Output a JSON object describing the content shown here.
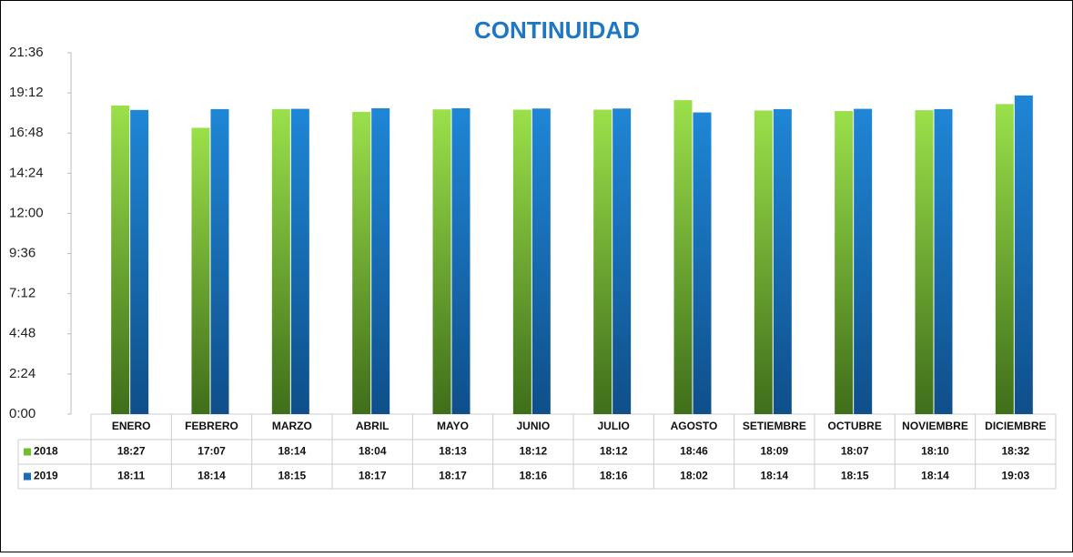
{
  "chart_data": {
    "type": "bar",
    "title": "CONTINUIDAD",
    "categories": [
      "ENERO",
      "FEBRERO",
      "MARZO",
      "ABRIL",
      "MAYO",
      "JUNIO",
      "JULIO",
      "AGOSTO",
      "SETIEMBRE",
      "OCTUBRE",
      "NOVIEMBRE",
      "DICIEMBRE"
    ],
    "series": [
      {
        "name": "2018",
        "color": "#6fbf2a",
        "values": [
          18.45,
          17.1167,
          18.2333,
          18.0667,
          18.2167,
          18.2,
          18.2,
          18.7667,
          18.15,
          18.1167,
          18.1667,
          18.5333
        ],
        "value_labels": [
          "18:27",
          "17:07",
          "18:14",
          "18:04",
          "18:13",
          "18:12",
          "18:12",
          "18:46",
          "18:09",
          "18:07",
          "18:10",
          "18:32"
        ]
      },
      {
        "name": "2019",
        "color": "#1a6db5",
        "values": [
          18.1833,
          18.2333,
          18.25,
          18.2833,
          18.2833,
          18.2667,
          18.2667,
          18.0333,
          18.2333,
          18.25,
          18.2333,
          19.05
        ],
        "value_labels": [
          "18:11",
          "18:14",
          "18:15",
          "18:17",
          "18:17",
          "18:16",
          "18:16",
          "18:02",
          "18:14",
          "18:15",
          "18:14",
          "19:03"
        ]
      }
    ],
    "ylim": [
      0,
      21.6
    ],
    "yticks": [
      {
        "value": 0,
        "label": "0:00"
      },
      {
        "value": 2.4,
        "label": "2:24"
      },
      {
        "value": 4.8,
        "label": "4:48"
      },
      {
        "value": 7.2,
        "label": "7:12"
      },
      {
        "value": 9.6,
        "label": "9:36"
      },
      {
        "value": 12,
        "label": "12:00"
      },
      {
        "value": 14.4,
        "label": "14:24"
      },
      {
        "value": 16.8,
        "label": "16:48"
      },
      {
        "value": 19.2,
        "label": "19:12"
      },
      {
        "value": 21.6,
        "label": "21:36"
      }
    ]
  }
}
